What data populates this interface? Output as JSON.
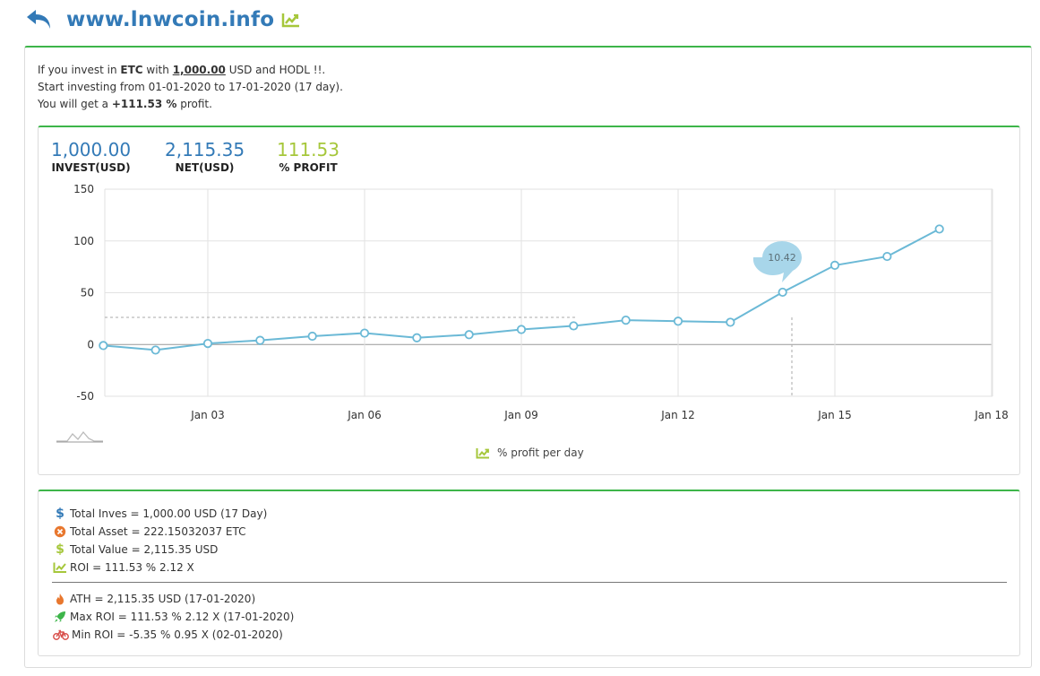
{
  "header": {
    "title": "www.lnwcoin.info"
  },
  "intro": {
    "line1_prefix": "If you invest in ",
    "coin": "ETC",
    "line1_with": " with ",
    "amount": "1,000.00",
    "line1_suffix": " USD and HODL !!.",
    "line2": "Start investing from 01-01-2020 to 17-01-2020 (17 day).",
    "line3_prefix": "You will get a ",
    "profit": "+111.53 %",
    "line3_suffix": " profit."
  },
  "stats_top": {
    "invest_value": "1,000.00",
    "invest_label": "INVEST(USD)",
    "net_value": "2,115.35",
    "net_label": "NET(USD)",
    "profit_value": "111.53",
    "profit_label": "% PROFIT"
  },
  "chart_data": {
    "type": "line",
    "x": [
      "2020-01-01",
      "2020-01-02",
      "2020-01-03",
      "2020-01-04",
      "2020-01-05",
      "2020-01-06",
      "2020-01-07",
      "2020-01-08",
      "2020-01-09",
      "2020-01-10",
      "2020-01-11",
      "2020-01-12",
      "2020-01-13",
      "2020-01-14",
      "2020-01-15",
      "2020-01-16",
      "2020-01-17"
    ],
    "series": [
      {
        "name": "% profit per day",
        "values": [
          -1,
          -5.35,
          1,
          4,
          8,
          11,
          6.5,
          9.5,
          14.5,
          18,
          23.5,
          22.5,
          21.5,
          50.5,
          76.5,
          85,
          111.53
        ]
      }
    ],
    "x_ticks": [
      "Jan 03",
      "Jan 06",
      "Jan 09",
      "Jan 12",
      "Jan 15",
      "Jan 18"
    ],
    "y_ticks": [
      "150",
      "100",
      "50",
      "0",
      "-50"
    ],
    "ylim": [
      -50,
      150
    ],
    "tooltip": {
      "value": "10.42"
    },
    "color": "#6bb9d6"
  },
  "legend": {
    "label": "% profit per day"
  },
  "summary": {
    "total_invest": "Total Inves = 1,000.00 USD (17 Day)",
    "total_asset": "Total Asset = 222.15032037 ETC",
    "total_value": "Total Value = 2,115.35 USD",
    "roi": "ROI = 111.53 % 2.12 X",
    "ath": "ATH = 2,115.35 USD (17-01-2020)",
    "max_roi": "Max ROI = 111.53 % 2.12 X (17-01-2020)",
    "min_roi": "Min ROI = -5.35 % 0.95 X (02-01-2020)"
  },
  "colors": {
    "accent_green": "#3db54a",
    "link_blue": "#337ab7",
    "lime": "#a6c73b",
    "orange": "#e8772e"
  }
}
